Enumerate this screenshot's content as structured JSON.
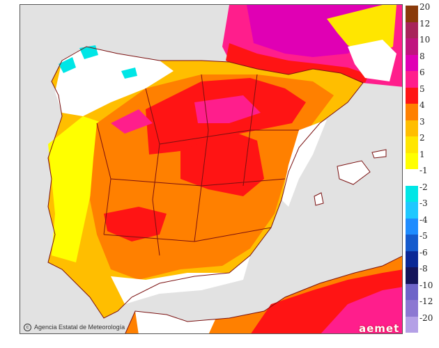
{
  "map": {
    "region": "Iberian Peninsula and Balearic Islands",
    "variable": "temperature anomaly",
    "colors": {
      "sea": "#e2e2e2",
      "land_outside": "#f2ecdc",
      "border": "#7a1010"
    }
  },
  "legend": {
    "items": [
      {
        "label": "20",
        "color": "#8a3a0a"
      },
      {
        "label": "12",
        "color": "#a8245a"
      },
      {
        "label": "10",
        "color": "#c0147e"
      },
      {
        "label": "8",
        "color": "#e000b4"
      },
      {
        "label": "6",
        "color": "#ff1e8c"
      },
      {
        "label": "5",
        "color": "#ff1414"
      },
      {
        "label": "4",
        "color": "#ff8000"
      },
      {
        "label": "3",
        "color": "#ffbe00"
      },
      {
        "label": "2",
        "color": "#ffe600"
      },
      {
        "label": "1",
        "color": "#ffff00"
      },
      {
        "label": "-1",
        "color": "#ffffff"
      },
      {
        "label": "-2",
        "color": "#00e6e6"
      },
      {
        "label": "-3",
        "color": "#1ec8ff"
      },
      {
        "label": "-4",
        "color": "#1e8cff"
      },
      {
        "label": "-5",
        "color": "#145acd"
      },
      {
        "label": "-6",
        "color": "#0a2896"
      },
      {
        "label": "-8",
        "color": "#14145a"
      },
      {
        "label": "-10",
        "color": "#6e64c8"
      },
      {
        "label": "-12",
        "color": "#8c78d2"
      },
      {
        "label": "-20",
        "color": "#b4a0e6"
      }
    ]
  },
  "footer": {
    "credit_icon": "copyright-icon",
    "credit": "Agencia Estatal de Meteorología",
    "logo": "aemet"
  }
}
